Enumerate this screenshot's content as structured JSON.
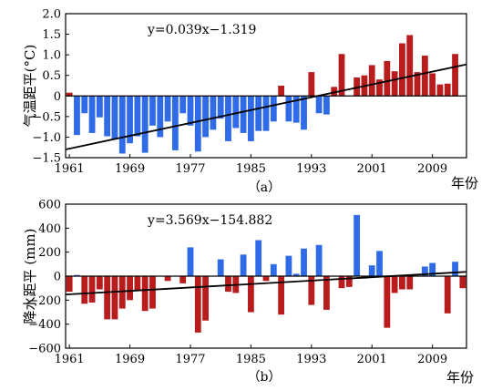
{
  "chart_data": [
    {
      "type": "bar",
      "caption": "（a）",
      "ylabel": "气温距平(°C)",
      "xunit_label": "年份",
      "equation": "y=0.039x−1.319",
      "trend": {
        "slope": 0.039,
        "intercept": -1.319
      },
      "x_start": 1961,
      "xlim": [
        1960.5,
        2013.5
      ],
      "ylim": [
        -1.5,
        2.0
      ],
      "xticks": [
        1961,
        1969,
        1977,
        1985,
        1993,
        2001,
        2009
      ],
      "yticks": [
        -1.5,
        -1.0,
        -0.5,
        0.0,
        0.5,
        1.0,
        1.5,
        2.0
      ],
      "ytick_labels": [
        "−1.5",
        "−1.0",
        "−0.5",
        "0",
        "0.5",
        "1.0",
        "1.5",
        "2.0"
      ],
      "positive_color": "#b81c1c",
      "negative_color": "#2f6be6",
      "values": [
        0.08,
        -0.95,
        -0.42,
        -0.9,
        -0.52,
        -0.98,
        -1.05,
        -1.4,
        -1.15,
        -0.98,
        -1.38,
        -0.72,
        -1.0,
        -0.62,
        -1.32,
        -0.42,
        -0.72,
        -1.35,
        -1.0,
        -0.82,
        -0.55,
        -1.1,
        -0.78,
        -0.9,
        -1.1,
        -0.85,
        -0.85,
        -0.62,
        0.25,
        -0.62,
        -0.65,
        -0.82,
        0.58,
        -0.42,
        -0.45,
        0.22,
        1.02,
        0.0,
        0.45,
        0.5,
        0.75,
        0.4,
        0.85,
        0.6,
        1.28,
        1.48,
        0.58,
        0.98,
        0.55,
        0.28,
        0.3,
        1.02
      ]
    },
    {
      "type": "bar",
      "caption": "（b）",
      "ylabel": "降水距平 (mm)",
      "xunit_label": "年份",
      "equation": "y=3.569x−154.882",
      "trend": {
        "slope": 3.569,
        "intercept": -154.882
      },
      "x_start": 1961,
      "xlim": [
        1960.5,
        2013.5
      ],
      "ylim": [
        -600,
        600
      ],
      "xticks": [
        1961,
        1969,
        1977,
        1985,
        1993,
        2001,
        2009
      ],
      "yticks": [
        -600,
        -400,
        -200,
        0,
        200,
        400,
        600
      ],
      "ytick_labels": [
        "−600",
        "−400",
        "−200",
        "0",
        "200",
        "400",
        "600"
      ],
      "positive_color": "#2f6be6",
      "negative_color": "#b81c1c",
      "values": [
        -130,
        10,
        -230,
        -220,
        -110,
        -360,
        -360,
        -270,
        -200,
        -120,
        -290,
        -270,
        0,
        -40,
        0,
        -60,
        240,
        -470,
        -370,
        0,
        140,
        -130,
        -140,
        180,
        -300,
        300,
        -40,
        100,
        -320,
        170,
        20,
        230,
        -240,
        260,
        -280,
        0,
        -100,
        -90,
        510,
        -20,
        90,
        210,
        -430,
        -140,
        -110,
        -110,
        0,
        80,
        110,
        0,
        -310,
        120,
        -100
      ]
    }
  ]
}
